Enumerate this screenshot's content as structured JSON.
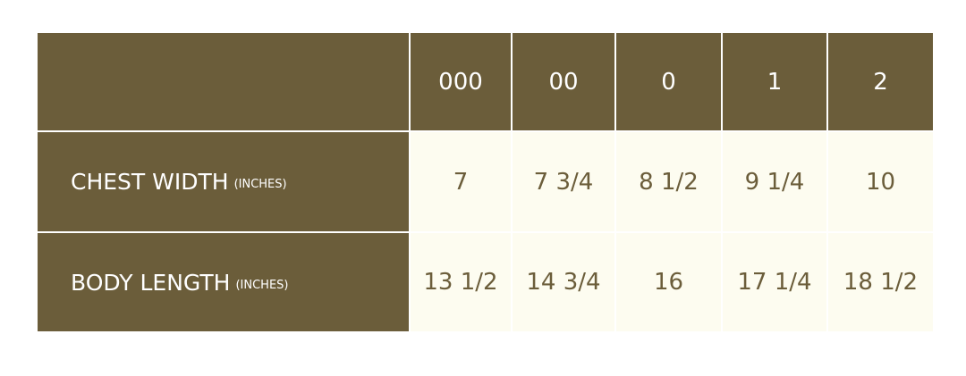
{
  "colors": {
    "header": "#6b5d3a",
    "cell": "#fdfcf0"
  },
  "sizes": [
    "000",
    "00",
    "0",
    "1",
    "2"
  ],
  "rows": [
    {
      "label": "CHEST WIDTH",
      "unit": "(INCHES)",
      "values": [
        "7",
        "7 3/4",
        "8 1/2",
        "9 1/4",
        "10"
      ]
    },
    {
      "label": "BODY LENGTH",
      "unit": "(INCHES)",
      "values": [
        "13 1/2",
        "14 3/4",
        "16",
        "17 1/4",
        "18 1/2"
      ]
    }
  ]
}
